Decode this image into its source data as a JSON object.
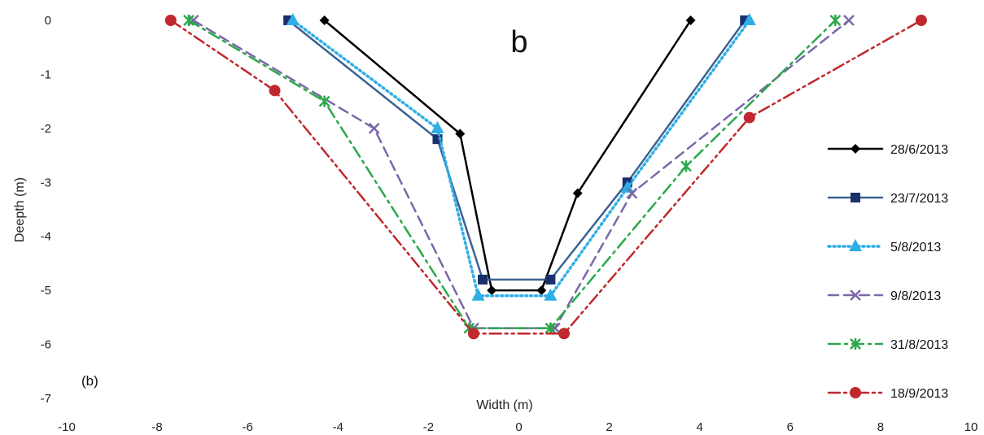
{
  "chart_data": {
    "type": "line",
    "title": "",
    "panel_label": "b",
    "corner_label": "(b)",
    "xlabel": "Width (m)",
    "ylabel": "Deepth (m)",
    "xlim": [
      -10,
      10
    ],
    "ylim": [
      -7,
      0
    ],
    "x_ticks": [
      "-10",
      "-8",
      "-6",
      "-4",
      "-2",
      "0",
      "2",
      "4",
      "6",
      "8",
      "10"
    ],
    "y_ticks": [
      "0",
      "-1",
      "-2",
      "-3",
      "-4",
      "-5",
      "-6",
      "-7"
    ],
    "grid": false,
    "legend_position": "right",
    "series": [
      {
        "name": "28/6/2013",
        "color": "#000000",
        "dash": "solid",
        "marker": "diamond",
        "points": [
          [
            -4.3,
            0
          ],
          [
            -1.3,
            -2.1
          ],
          [
            -0.6,
            -5.0
          ],
          [
            0.5,
            -5.0
          ],
          [
            1.3,
            -3.2
          ],
          [
            3.8,
            0
          ]
        ]
      },
      {
        "name": "23/7/2013",
        "color": "#3c6291",
        "dash": "solid",
        "marker": "square",
        "points": [
          [
            -5.1,
            0
          ],
          [
            -1.8,
            -2.2
          ],
          [
            -0.8,
            -4.8
          ],
          [
            0.7,
            -4.8
          ],
          [
            2.4,
            -3.0
          ],
          [
            5.0,
            0
          ]
        ]
      },
      {
        "name": "5/8/2013",
        "color": "#2eaee6",
        "dash": "dotted",
        "marker": "triangle",
        "points": [
          [
            -5.0,
            0
          ],
          [
            -1.8,
            -2.0
          ],
          [
            -0.9,
            -5.1
          ],
          [
            0.7,
            -5.1
          ],
          [
            2.4,
            -3.1
          ],
          [
            5.1,
            0
          ]
        ]
      },
      {
        "name": "9/8/2013",
        "color": "#7b68a8",
        "dash": "dashed",
        "marker": "x",
        "points": [
          [
            -7.2,
            0
          ],
          [
            -3.2,
            -2.0
          ],
          [
            -1.0,
            -5.7
          ],
          [
            0.8,
            -5.7
          ],
          [
            2.5,
            -3.2
          ],
          [
            7.3,
            0
          ]
        ]
      },
      {
        "name": "31/8/2013",
        "color": "#2aa84a",
        "dash": "dashdot",
        "marker": "star",
        "points": [
          [
            -7.3,
            0
          ],
          [
            -4.3,
            -1.5
          ],
          [
            -1.1,
            -5.7
          ],
          [
            0.7,
            -5.7
          ],
          [
            3.7,
            -2.7
          ],
          [
            7.0,
            0
          ]
        ]
      },
      {
        "name": "18/9/2013",
        "color": "#c0282d",
        "dash": "dashdotdot",
        "marker": "circle",
        "points": [
          [
            -7.7,
            0
          ],
          [
            -5.4,
            -1.3
          ],
          [
            -1.0,
            -5.8
          ],
          [
            1.0,
            -5.8
          ],
          [
            5.1,
            -1.8
          ],
          [
            8.9,
            0
          ]
        ]
      }
    ]
  }
}
